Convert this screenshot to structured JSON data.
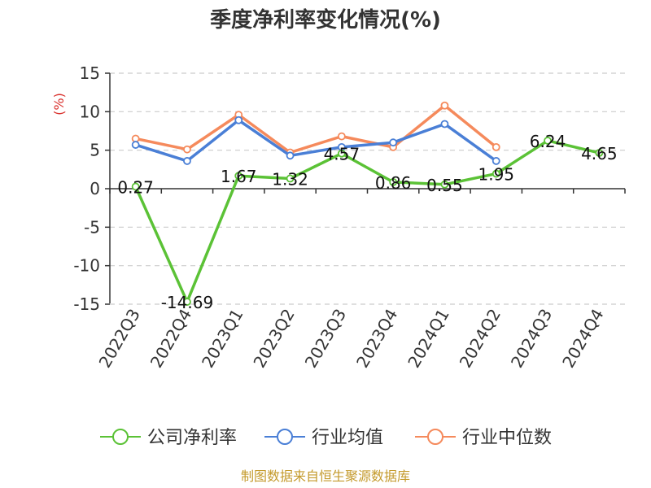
{
  "chart_data": {
    "type": "line",
    "title": "季度净利率变化情况(%)",
    "ylabel": "(%)",
    "xlabel": "",
    "ylim": [
      -15,
      15
    ],
    "yticks": [
      15,
      10,
      5,
      0,
      -5,
      -10,
      -15
    ],
    "categories": [
      "2022Q3",
      "2022Q4",
      "2023Q1",
      "2023Q2",
      "2023Q3",
      "2023Q4",
      "2024Q1",
      "2024Q2",
      "2024Q3",
      "2024Q4"
    ],
    "grid": true,
    "legend": "bottom",
    "series": [
      {
        "name": "公司净利率",
        "color": "#5bc236",
        "values": [
          0.27,
          -14.69,
          1.67,
          1.32,
          4.57,
          0.86,
          0.55,
          1.95,
          6.24,
          4.65
        ],
        "labels": [
          "0.27",
          "-14.69",
          "1.67",
          "1.32",
          "4.57",
          "0.86",
          "0.55",
          "1.95",
          "6.24",
          "4.65"
        ]
      },
      {
        "name": "行业均值",
        "color": "#4a7fd6",
        "values": [
          5.7,
          3.6,
          8.9,
          4.3,
          5.4,
          6.0,
          8.4,
          3.6,
          null,
          null
        ]
      },
      {
        "name": "行业中位数",
        "color": "#f58a5c",
        "values": [
          6.5,
          5.1,
          9.6,
          4.7,
          6.8,
          5.4,
          10.8,
          5.4,
          null,
          null
        ]
      }
    ]
  },
  "source": "制图数据来自恒生聚源数据库"
}
